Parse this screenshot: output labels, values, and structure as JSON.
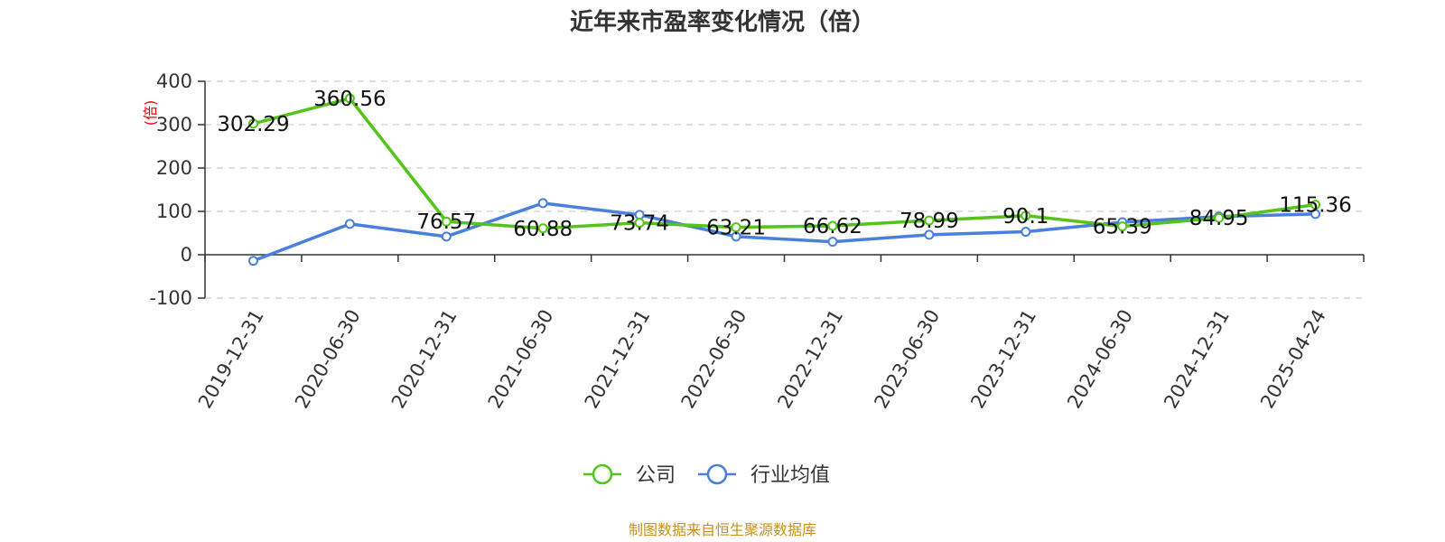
{
  "chart_data": {
    "type": "line",
    "title": "近年来市盈率变化情况（倍）",
    "ylabel": "(倍)",
    "xlabel": "",
    "ylim": [
      -100,
      400
    ],
    "yticks": [
      -100,
      0,
      100,
      200,
      300,
      400
    ],
    "grid": true,
    "legend_position": "bottom",
    "categories": [
      "2019-12-31",
      "2020-06-30",
      "2020-12-31",
      "2021-06-30",
      "2021-12-31",
      "2022-06-30",
      "2022-12-31",
      "2023-06-30",
      "2023-12-31",
      "2024-06-30",
      "2024-12-31",
      "2025-04-24"
    ],
    "series": [
      {
        "name": "公司",
        "color": "#52c41a",
        "values": [
          302.29,
          360.56,
          76.57,
          60.88,
          73.74,
          63.21,
          66.62,
          78.99,
          90.1,
          65.39,
          84.95,
          115.36
        ],
        "labels": [
          "302.29",
          "360.56",
          "76.57",
          "60.88",
          "73.74",
          "63.21",
          "66.62",
          "78.99",
          "90.1",
          "65.39",
          "84.95",
          "115.36"
        ]
      },
      {
        "name": "行业均值",
        "color": "#4a7fdc",
        "values": [
          -14,
          71,
          42,
          119,
          92,
          42,
          30,
          46,
          53,
          75,
          88,
          94
        ]
      }
    ],
    "source": "制图数据来自恒生聚源数据库"
  }
}
